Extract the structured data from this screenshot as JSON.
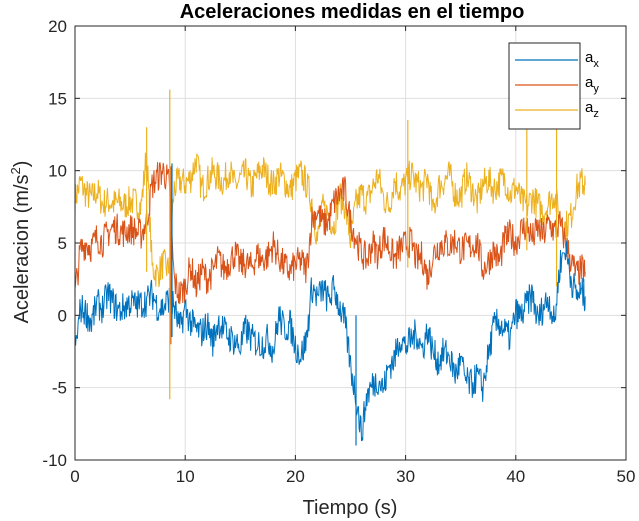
{
  "chart_data": {
    "type": "line",
    "title": "Aceleraciones medidas en el tiempo",
    "xlabel": "Tiempo (s)",
    "ylabel_main": "Aceleracion (m/s",
    "ylabel_sup": "2",
    "ylabel_tail": ")",
    "xlim": [
      0,
      50
    ],
    "ylim": [
      -10,
      20
    ],
    "xticks": [
      0,
      10,
      20,
      30,
      40,
      50
    ],
    "yticks": [
      -10,
      -5,
      0,
      5,
      10,
      15,
      20
    ],
    "grid": true,
    "box": true,
    "legend_position": "top-right",
    "series": [
      {
        "name": "a",
        "sub": "x",
        "color": "#0072bd",
        "x": [
          0,
          0.5,
          1,
          1.5,
          2,
          2.5,
          3,
          3.5,
          4,
          4.5,
          5,
          5.5,
          6,
          6.5,
          7,
          7.5,
          8,
          8.5,
          9,
          9.5,
          10,
          10.5,
          11,
          11.5,
          12,
          12.5,
          13,
          13.5,
          14,
          14.5,
          15,
          15.5,
          16,
          16.5,
          17,
          17.5,
          18,
          18.5,
          19,
          19.5,
          20,
          20.5,
          21,
          21.5,
          22,
          22.5,
          23,
          23.5,
          24,
          24.5,
          25,
          25.5,
          26,
          26.5,
          27,
          27.5,
          28,
          28.5,
          29,
          29.5,
          30,
          30.5,
          31,
          31.5,
          32,
          32.5,
          33,
          33.5,
          34,
          34.5,
          35,
          35.5,
          36,
          36.5,
          37,
          37.5,
          38,
          38.5,
          39,
          39.5,
          40,
          40.5,
          41,
          41.5,
          42,
          42.5,
          43,
          43.5,
          44,
          44.5,
          45,
          45.5,
          46,
          46.3
        ],
        "y": [
          -2.5,
          0.5,
          0.2,
          -0.5,
          0.8,
          0.5,
          1.5,
          0.8,
          0.3,
          0.6,
          0.9,
          0.7,
          0.8,
          1.0,
          1.5,
          0.6,
          0.5,
          1.2,
          0.6,
          -1.0,
          0.5,
          -0.5,
          -1.0,
          -1.2,
          -0.6,
          -1.8,
          -0.4,
          -1.0,
          -1.5,
          -1.8,
          -2.2,
          -0.9,
          -1.6,
          -1.9,
          -2.0,
          -1.6,
          -2.4,
          0.0,
          -1.0,
          -0.6,
          -2.1,
          -2.8,
          -1.7,
          2.0,
          1.2,
          1.8,
          1.0,
          1.9,
          0.6,
          -0.5,
          -3.5,
          -5.6,
          -8.2,
          -5.5,
          -4.8,
          -4.4,
          -5.1,
          -3.5,
          -3.0,
          -1.5,
          -2.2,
          -1.7,
          -1.2,
          -2.4,
          -1.0,
          -2.6,
          -3.2,
          -2.5,
          -2.9,
          -4.1,
          -3.2,
          -4.6,
          -4.8,
          -4.2,
          -5.0,
          -2.8,
          -0.8,
          -0.5,
          -1.1,
          -1.6,
          0.2,
          -0.1,
          0.8,
          1.4,
          -0.4,
          0.6,
          1.2,
          -0.6,
          3.5,
          4.7,
          2.6,
          1.4,
          1.6,
          1.3
        ]
      },
      {
        "name": "a",
        "sub": "y",
        "color": "#d95319",
        "x": [
          0,
          0.5,
          1,
          1.5,
          2,
          2.5,
          3,
          3.5,
          4,
          4.5,
          5,
          5.5,
          6,
          6.5,
          7,
          7.5,
          8,
          8.5,
          9,
          9.5,
          10,
          10.5,
          11,
          11.5,
          12,
          12.5,
          13,
          13.5,
          14,
          14.5,
          15,
          15.5,
          16,
          16.5,
          17,
          17.5,
          18,
          18.5,
          19,
          19.5,
          20,
          20.5,
          21,
          21.5,
          22,
          22.5,
          23,
          23.5,
          24,
          24.5,
          25,
          25.5,
          26,
          26.5,
          27,
          27.5,
          28,
          28.5,
          29,
          29.5,
          30,
          30.5,
          31,
          31.5,
          32,
          32.5,
          33,
          33.5,
          34,
          34.5,
          35,
          35.5,
          36,
          36.5,
          37,
          37.5,
          38,
          38.5,
          39,
          39.5,
          40,
          40.5,
          41,
          41.5,
          42,
          42.5,
          43,
          43.5,
          44,
          44.5,
          45,
          45.5,
          46,
          46.3
        ],
        "y": [
          1.5,
          4.5,
          5.0,
          4.7,
          5.4,
          5.1,
          5.7,
          6.1,
          5.9,
          5.7,
          6.0,
          5.8,
          5.6,
          6.5,
          9.0,
          9.6,
          10.0,
          9.2,
          2.4,
          1.4,
          2.0,
          3.4,
          2.0,
          3.1,
          2.5,
          3.0,
          3.9,
          3.2,
          3.7,
          4.3,
          3.5,
          3.6,
          3.3,
          4.2,
          3.8,
          4.1,
          4.9,
          4.0,
          3.4,
          3.0,
          3.5,
          3.8,
          3.1,
          6.7,
          7.2,
          6.3,
          6.5,
          7.8,
          8.4,
          8.6,
          6.5,
          5.3,
          4.3,
          3.8,
          5.0,
          4.2,
          5.4,
          4.7,
          3.9,
          4.6,
          4.9,
          5.1,
          3.8,
          4.1,
          2.6,
          4.2,
          4.8,
          5.0,
          4.8,
          5.2,
          4.5,
          4.7,
          4.8,
          5.1,
          3.2,
          3.7,
          4.5,
          3.7,
          5.2,
          5.6,
          5.0,
          5.9,
          6.2,
          5.3,
          6.0,
          5.5,
          6.4,
          5.8,
          6.3,
          5.1,
          3.8,
          2.8,
          3.2,
          3.0
        ]
      },
      {
        "name": "a",
        "sub": "z",
        "color": "#edb120",
        "x": [
          0,
          0.5,
          1,
          1.5,
          2,
          2.5,
          3,
          3.5,
          4,
          4.5,
          5,
          5.5,
          6,
          6.5,
          7,
          7.5,
          8,
          8.5,
          9,
          9.5,
          10,
          10.5,
          11,
          11.5,
          12,
          12.5,
          13,
          13.5,
          14,
          14.5,
          15,
          15.5,
          16,
          16.5,
          17,
          17.5,
          18,
          18.5,
          19,
          19.5,
          20,
          20.5,
          21,
          21.5,
          22,
          22.5,
          23,
          23.5,
          24,
          24.5,
          25,
          25.5,
          26,
          26.5,
          27,
          27.5,
          28,
          28.5,
          29,
          29.5,
          30,
          30.5,
          31,
          31.5,
          32,
          32.5,
          33,
          33.5,
          34,
          34.5,
          35,
          35.5,
          36,
          36.5,
          37,
          37.5,
          38,
          38.5,
          39,
          39.5,
          40,
          40.5,
          41,
          41.5,
          42,
          42.5,
          43,
          43.5,
          44,
          44.5,
          45,
          45.5,
          46,
          46.3
        ],
        "y": [
          8.0,
          9.2,
          8.4,
          8.1,
          8.6,
          7.7,
          7.9,
          7.7,
          7.8,
          7.6,
          7.9,
          7.8,
          7.5,
          11.2,
          3.3,
          2.8,
          3.6,
          3.1,
          8.8,
          9.3,
          9.1,
          9.5,
          10.8,
          8.7,
          9.3,
          9.9,
          9.5,
          9.2,
          10.1,
          8.9,
          9.4,
          9.8,
          8.8,
          9.6,
          10.2,
          9.5,
          9.0,
          9.7,
          9.3,
          8.6,
          9.4,
          9.8,
          9.1,
          7.9,
          5.2,
          7.4,
          7.0,
          6.2,
          8.3,
          7.6,
          5.2,
          7.7,
          8.4,
          7.9,
          8.8,
          9.7,
          8.1,
          7.5,
          9.4,
          8.6,
          9.2,
          9.8,
          9.1,
          8.7,
          9.5,
          7.1,
          8.9,
          9.3,
          9.7,
          8.4,
          8.2,
          9.6,
          8.8,
          7.8,
          9.0,
          9.4,
          8.7,
          9.2,
          9.5,
          8.3,
          8.9,
          7.9,
          7.5,
          8.2,
          7.6,
          7.1,
          7.8,
          8.4,
          6.7,
          6.1,
          6.8,
          8.7,
          9.2,
          9.0
        ]
      }
    ],
    "spikes": [
      {
        "series": 2,
        "x": 6.5,
        "low": 3.0,
        "high": 13.0
      },
      {
        "series": 1,
        "x": 8.7,
        "low": -2.0,
        "high": 10.3
      },
      {
        "series": 2,
        "x": 8.6,
        "low": -5.8,
        "high": 15.6
      },
      {
        "series": 0,
        "x": 8.8,
        "low": -1.5,
        "high": 10.5
      },
      {
        "series": 2,
        "x": 30.2,
        "low": 3.3,
        "high": 13.5
      },
      {
        "series": 2,
        "x": 41.0,
        "low": 4.5,
        "high": 14.1
      },
      {
        "series": 2,
        "x": 43.7,
        "low": 2.0,
        "high": 13.0
      },
      {
        "series": 0,
        "x": 25.5,
        "low": -9.0,
        "high": 0.0
      }
    ]
  }
}
